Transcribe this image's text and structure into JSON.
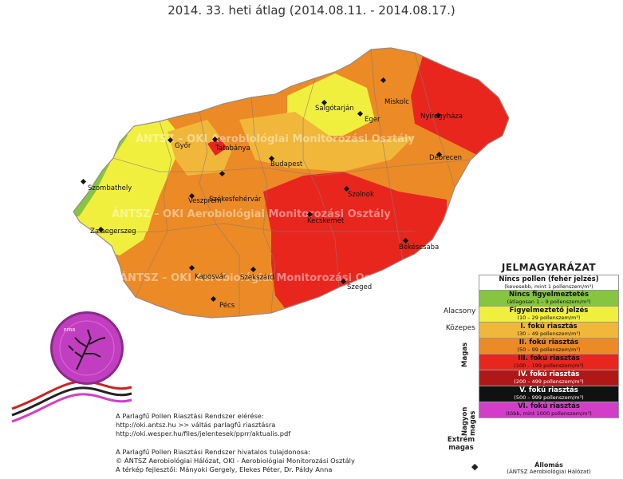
{
  "title": "2014. 33. heti átlag (2014.08.11. - 2014.08.17.)",
  "watermark": "ÁNTSZ – OKI Aerobiológiai Monitorozási Osztály",
  "cities": [
    {
      "name": "Salgótarján"
    },
    {
      "name": "Miskolc"
    },
    {
      "name": "Nyíregyháza"
    },
    {
      "name": "Eger"
    },
    {
      "name": "Győr"
    },
    {
      "name": "Tatabánya"
    },
    {
      "name": "Budapest"
    },
    {
      "name": "Debrecen"
    },
    {
      "name": "Szombathely"
    },
    {
      "name": "Veszprém"
    },
    {
      "name": "Székesfehérvár"
    },
    {
      "name": "Szolnok"
    },
    {
      "name": "Kecskemét"
    },
    {
      "name": "Zalaegerszeg"
    },
    {
      "name": "Békéscsaba"
    },
    {
      "name": "Kaposvár"
    },
    {
      "name": "Szekszárd"
    },
    {
      "name": "Szeged"
    },
    {
      "name": "Pécs"
    }
  ],
  "legend": {
    "title": "JELMAGYARÁZAT",
    "rows": [
      {
        "main": "Nincs pollen (fehér jelzés)",
        "sub": "(kevesebb, mint 1 pollenszem/m³)",
        "color": "#ffffff",
        "text": "#111"
      },
      {
        "main": "Nincs figyelmeztetés",
        "sub": "(átlagosan 1 – 9 pollenszem/m³)",
        "color": "#86c540",
        "text": "#111"
      },
      {
        "main": "Figyelmeztető jelzés",
        "sub": "(10 – 29 pollenszem/m³)",
        "color": "#f1ef3e",
        "text": "#111"
      },
      {
        "main": "I. fokú riasztás",
        "sub": "(30 – 49 pollenszem/m³)",
        "color": "#f1b73a",
        "text": "#111"
      },
      {
        "main": "II. fokú riasztás",
        "sub": "(50 – 99 pollenszem/m³)",
        "color": "#ec8a25",
        "text": "#111"
      },
      {
        "main": "III. fokú riasztás",
        "sub": "(100 – 199 pollenszem/m³)",
        "color": "#e8261e",
        "text": "#111"
      },
      {
        "main": "IV. fokú riasztás",
        "sub": "(200 – 499 pollenszem/m³)",
        "color": "#b01818",
        "text": "#fff"
      },
      {
        "main": "V. fokú riasztás",
        "sub": "(500 – 999 pollenszem/m³)",
        "color": "#111111",
        "text": "#fff"
      },
      {
        "main": "VI. fokú riasztás",
        "sub": "(több, mint 1000 pollenszem/m³)",
        "color": "#d23ec8",
        "text": "#111"
      }
    ],
    "categories": {
      "alacsony": "Alacsony",
      "kozepes": "Közepes",
      "magas": "Magas",
      "nagyon_magas": "Nagyon magas",
      "extrem": "Extrém magas"
    },
    "station_label": "Állomás",
    "station_sub": "(ÁNTSZ Aerobiológiai Hálózat)"
  },
  "footer": {
    "line1": "A Parlagfű Pollen Riasztási Rendszer elérése:",
    "line2": "http://oki.antsz.hu >> váltás parlagfű riasztásra",
    "line3": "http://oki.wesper.hu/files/jelentesek/pprr/aktualis.pdf",
    "line4": "A Parlagfű Pollen Riasztási Rendszer hivatalos tulajdonosa:",
    "line5": "© ÁNTSZ Aerobiológiai Hálózat, OKI - Aerobiológiai Monitorozási Osztály",
    "line6": "A térkép fejlesztői: Mányoki Gergely, Elekes Péter, Dr. Páldy Anna"
  },
  "logo": {
    "text": "PPRR"
  }
}
